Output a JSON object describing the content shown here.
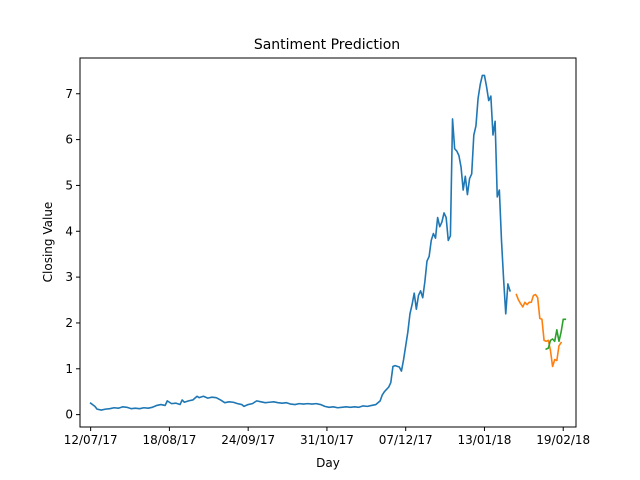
{
  "chart_data": {
    "type": "line",
    "title": "Santiment Prediction",
    "xlabel": "Day",
    "ylabel": "Closing Value",
    "x_ticks": [
      "12/07/17",
      "18/08/17",
      "24/09/17",
      "31/10/17",
      "07/12/17",
      "13/01/18",
      "19/02/18"
    ],
    "y_ticks": [
      "0",
      "1",
      "2",
      "3",
      "4",
      "5",
      "6",
      "7"
    ],
    "xlim": [
      "2017-07-07",
      "2018-02-25"
    ],
    "ylim": [
      -0.27,
      7.78
    ],
    "grid": false,
    "legend": "none",
    "series": [
      {
        "color": "#1f77b4",
        "points": [
          [
            "2017-07-12",
            0.25
          ],
          [
            "2017-07-14",
            0.18
          ],
          [
            "2017-07-15",
            0.12
          ],
          [
            "2017-07-17",
            0.1
          ],
          [
            "2017-07-19",
            0.12
          ],
          [
            "2017-07-21",
            0.13
          ],
          [
            "2017-07-23",
            0.15
          ],
          [
            "2017-07-25",
            0.14
          ],
          [
            "2017-07-27",
            0.17
          ],
          [
            "2017-07-29",
            0.16
          ],
          [
            "2017-07-31",
            0.13
          ],
          [
            "2017-08-02",
            0.14
          ],
          [
            "2017-08-04",
            0.13
          ],
          [
            "2017-08-06",
            0.15
          ],
          [
            "2017-08-08",
            0.14
          ],
          [
            "2017-08-10",
            0.16
          ],
          [
            "2017-08-12",
            0.2
          ],
          [
            "2017-08-14",
            0.22
          ],
          [
            "2017-08-16",
            0.2
          ],
          [
            "2017-08-17",
            0.3
          ],
          [
            "2017-08-19",
            0.24
          ],
          [
            "2017-08-21",
            0.25
          ],
          [
            "2017-08-23",
            0.22
          ],
          [
            "2017-08-24",
            0.32
          ],
          [
            "2017-08-25",
            0.27
          ],
          [
            "2017-08-27",
            0.3
          ],
          [
            "2017-08-29",
            0.32
          ],
          [
            "2017-08-31",
            0.4
          ],
          [
            "2017-09-01",
            0.37
          ],
          [
            "2017-09-03",
            0.4
          ],
          [
            "2017-09-05",
            0.36
          ],
          [
            "2017-09-07",
            0.38
          ],
          [
            "2017-09-09",
            0.37
          ],
          [
            "2017-09-11",
            0.32
          ],
          [
            "2017-09-13",
            0.26
          ],
          [
            "2017-09-15",
            0.28
          ],
          [
            "2017-09-17",
            0.27
          ],
          [
            "2017-09-19",
            0.24
          ],
          [
            "2017-09-21",
            0.22
          ],
          [
            "2017-09-22",
            0.18
          ],
          [
            "2017-09-24",
            0.22
          ],
          [
            "2017-09-26",
            0.24
          ],
          [
            "2017-09-28",
            0.3
          ],
          [
            "2017-09-30",
            0.28
          ],
          [
            "2017-10-02",
            0.26
          ],
          [
            "2017-10-04",
            0.27
          ],
          [
            "2017-10-06",
            0.28
          ],
          [
            "2017-10-08",
            0.26
          ],
          [
            "2017-10-10",
            0.25
          ],
          [
            "2017-10-12",
            0.26
          ],
          [
            "2017-10-14",
            0.23
          ],
          [
            "2017-10-16",
            0.22
          ],
          [
            "2017-10-18",
            0.24
          ],
          [
            "2017-10-20",
            0.23
          ],
          [
            "2017-10-22",
            0.24
          ],
          [
            "2017-10-24",
            0.23
          ],
          [
            "2017-10-26",
            0.24
          ],
          [
            "2017-10-28",
            0.22
          ],
          [
            "2017-10-30",
            0.18
          ],
          [
            "2017-11-01",
            0.16
          ],
          [
            "2017-11-03",
            0.17
          ],
          [
            "2017-11-05",
            0.15
          ],
          [
            "2017-11-07",
            0.16
          ],
          [
            "2017-11-09",
            0.17
          ],
          [
            "2017-11-11",
            0.16
          ],
          [
            "2017-11-13",
            0.17
          ],
          [
            "2017-11-15",
            0.16
          ],
          [
            "2017-11-17",
            0.19
          ],
          [
            "2017-11-19",
            0.18
          ],
          [
            "2017-11-21",
            0.2
          ],
          [
            "2017-11-23",
            0.22
          ],
          [
            "2017-11-25",
            0.3
          ],
          [
            "2017-11-26",
            0.43
          ],
          [
            "2017-11-27",
            0.5
          ],
          [
            "2017-11-29",
            0.6
          ],
          [
            "2017-11-30",
            0.7
          ],
          [
            "2017-12-01",
            1.05
          ],
          [
            "2017-12-02",
            1.07
          ],
          [
            "2017-12-04",
            1.04
          ],
          [
            "2017-12-05",
            0.95
          ],
          [
            "2017-12-06",
            1.2
          ],
          [
            "2017-12-07",
            1.5
          ],
          [
            "2017-12-08",
            1.8
          ],
          [
            "2017-12-09",
            2.2
          ],
          [
            "2017-12-10",
            2.4
          ],
          [
            "2017-12-11",
            2.65
          ],
          [
            "2017-12-12",
            2.3
          ],
          [
            "2017-12-13",
            2.6
          ],
          [
            "2017-12-14",
            2.7
          ],
          [
            "2017-12-15",
            2.55
          ],
          [
            "2017-12-16",
            2.9
          ],
          [
            "2017-12-17",
            3.35
          ],
          [
            "2017-12-18",
            3.45
          ],
          [
            "2017-12-19",
            3.8
          ],
          [
            "2017-12-20",
            3.95
          ],
          [
            "2017-12-21",
            3.85
          ],
          [
            "2017-12-22",
            4.3
          ],
          [
            "2017-12-23",
            4.1
          ],
          [
            "2017-12-24",
            4.2
          ],
          [
            "2017-12-25",
            4.4
          ],
          [
            "2017-12-26",
            4.3
          ],
          [
            "2017-12-27",
            3.8
          ],
          [
            "2017-12-28",
            3.9
          ],
          [
            "2017-12-29",
            6.45
          ],
          [
            "2017-12-30",
            5.8
          ],
          [
            "2017-12-31",
            5.75
          ],
          [
            "2018-01-01",
            5.65
          ],
          [
            "2018-01-02",
            5.4
          ],
          [
            "2018-01-03",
            4.9
          ],
          [
            "2018-01-04",
            5.2
          ],
          [
            "2018-01-05",
            4.8
          ],
          [
            "2018-01-06",
            5.15
          ],
          [
            "2018-01-07",
            5.25
          ],
          [
            "2018-01-08",
            6.1
          ],
          [
            "2018-01-09",
            6.3
          ],
          [
            "2018-01-10",
            6.9
          ],
          [
            "2018-01-11",
            7.2
          ],
          [
            "2018-01-12",
            7.4
          ],
          [
            "2018-01-13",
            7.4
          ],
          [
            "2018-01-14",
            7.15
          ],
          [
            "2018-01-15",
            6.85
          ],
          [
            "2018-01-16",
            6.95
          ],
          [
            "2018-01-17",
            6.1
          ],
          [
            "2018-01-18",
            6.4
          ],
          [
            "2018-01-19",
            4.75
          ],
          [
            "2018-01-20",
            4.9
          ],
          [
            "2018-01-21",
            3.8
          ],
          [
            "2018-01-22",
            2.95
          ],
          [
            "2018-01-23",
            2.2
          ],
          [
            "2018-01-24",
            2.85
          ],
          [
            "2018-01-25",
            2.7
          ]
        ]
      },
      {
        "color": "#ff7f0e",
        "points": [
          [
            "2018-01-28",
            2.62
          ],
          [
            "2018-01-29",
            2.5
          ],
          [
            "2018-01-30",
            2.42
          ],
          [
            "2018-01-31",
            2.35
          ],
          [
            "2018-02-01",
            2.45
          ],
          [
            "2018-02-02",
            2.4
          ],
          [
            "2018-02-03",
            2.45
          ],
          [
            "2018-02-04",
            2.45
          ],
          [
            "2018-02-05",
            2.6
          ],
          [
            "2018-02-06",
            2.62
          ],
          [
            "2018-02-07",
            2.55
          ],
          [
            "2018-02-08",
            2.1
          ],
          [
            "2018-02-09",
            2.08
          ],
          [
            "2018-02-10",
            1.62
          ],
          [
            "2018-02-11",
            1.6
          ],
          [
            "2018-02-12",
            1.62
          ],
          [
            "2018-02-13",
            1.4
          ],
          [
            "2018-02-14",
            1.05
          ],
          [
            "2018-02-15",
            1.2
          ],
          [
            "2018-02-16",
            1.18
          ],
          [
            "2018-02-17",
            1.5
          ],
          [
            "2018-02-18",
            1.57
          ]
        ]
      },
      {
        "color": "#2ca02c",
        "points": [
          [
            "2018-02-11",
            1.43
          ],
          [
            "2018-02-12",
            1.45
          ],
          [
            "2018-02-13",
            1.62
          ],
          [
            "2018-02-14",
            1.65
          ],
          [
            "2018-02-15",
            1.6
          ],
          [
            "2018-02-16",
            1.85
          ],
          [
            "2018-02-17",
            1.6
          ],
          [
            "2018-02-18",
            1.8
          ],
          [
            "2018-02-19",
            2.08
          ],
          [
            "2018-02-20",
            2.08
          ]
        ]
      }
    ]
  }
}
